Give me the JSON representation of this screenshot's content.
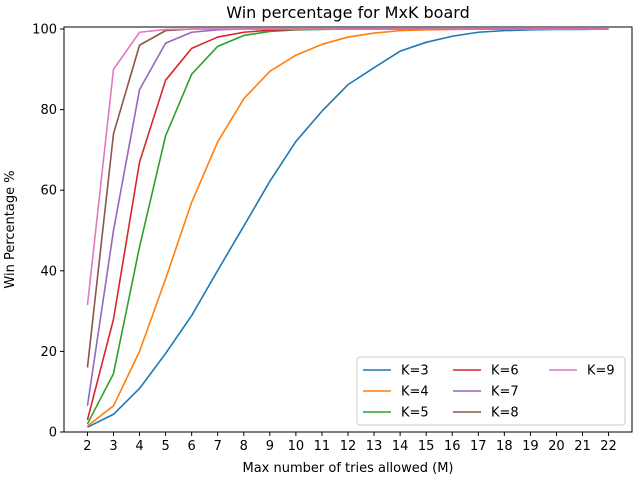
{
  "chart_data": {
    "type": "line",
    "title": "Win percentage for MxK board",
    "xlabel": "Max number of tries allowed (M)",
    "ylabel": "Win Percentage %",
    "xlim": [
      1.1,
      22.9
    ],
    "ylim": [
      0,
      100.5
    ],
    "x": [
      2,
      3,
      4,
      5,
      6,
      7,
      8,
      9,
      10,
      11,
      12,
      13,
      14,
      15,
      16,
      17,
      18,
      19,
      20,
      21,
      22
    ],
    "xticks": [
      2,
      3,
      4,
      5,
      6,
      7,
      8,
      9,
      10,
      11,
      12,
      13,
      14,
      15,
      16,
      17,
      18,
      19,
      20,
      21,
      22
    ],
    "yticks": [
      0,
      20,
      40,
      60,
      80,
      100
    ],
    "grid": false,
    "legend_position": "bottom-right",
    "legend_columns": 3,
    "series": [
      {
        "name": "K=3",
        "color": "#1f77b4",
        "values": [
          1.2,
          4.4,
          10.8,
          19.5,
          28.9,
          40.1,
          51.1,
          62.2,
          72.1,
          79.6,
          86.2,
          90.4,
          94.5,
          96.7,
          98.2,
          99.2,
          99.6,
          99.8,
          99.9,
          99.9,
          100.0
        ]
      },
      {
        "name": "K=4",
        "color": "#ff7f0e",
        "values": [
          1.5,
          6.5,
          20.0,
          38.0,
          57.0,
          72.0,
          82.7,
          89.5,
          93.5,
          96.2,
          98.0,
          99.0,
          99.6,
          99.8,
          99.9,
          100.0,
          100.0,
          100.0,
          100.0,
          100.0,
          100.0
        ]
      },
      {
        "name": "K=5",
        "color": "#2ca02c",
        "values": [
          2.0,
          14.5,
          46.0,
          73.5,
          88.8,
          95.7,
          98.4,
          99.4,
          99.8,
          99.9,
          100.0,
          100.0,
          100.0,
          100.0,
          100.0,
          100.0,
          100.0,
          100.0,
          100.0,
          100.0,
          100.0
        ]
      },
      {
        "name": "K=6",
        "color": "#d62728",
        "values": [
          3.0,
          28.0,
          67.0,
          87.3,
          95.2,
          98.0,
          99.2,
          99.7,
          99.9,
          100.0,
          100.0,
          100.0,
          100.0,
          100.0,
          100.0,
          100.0,
          100.0,
          100.0,
          100.0,
          100.0,
          100.0
        ]
      },
      {
        "name": "K=7",
        "color": "#9467bd",
        "values": [
          6.5,
          50.0,
          85.0,
          96.5,
          99.2,
          99.8,
          100.0,
          100.0,
          100.0,
          100.0,
          100.0,
          100.0,
          100.0,
          100.0,
          100.0,
          100.0,
          100.0,
          100.0,
          100.0,
          100.0,
          100.0
        ]
      },
      {
        "name": "K=8",
        "color": "#8c564b",
        "values": [
          16.0,
          74.0,
          96.0,
          99.6,
          100.0,
          100.0,
          100.0,
          100.0,
          100.0,
          100.0,
          100.0,
          100.0,
          100.0,
          100.0,
          100.0,
          100.0,
          100.0,
          100.0,
          100.0,
          100.0,
          100.0
        ]
      },
      {
        "name": "K=9",
        "color": "#e377c2",
        "values": [
          31.5,
          90.0,
          99.2,
          99.9,
          100.0,
          100.0,
          100.0,
          100.0,
          100.0,
          100.0,
          100.0,
          100.0,
          100.0,
          100.0,
          100.0,
          100.0,
          100.0,
          100.0,
          100.0,
          100.0,
          100.0
        ]
      }
    ]
  }
}
